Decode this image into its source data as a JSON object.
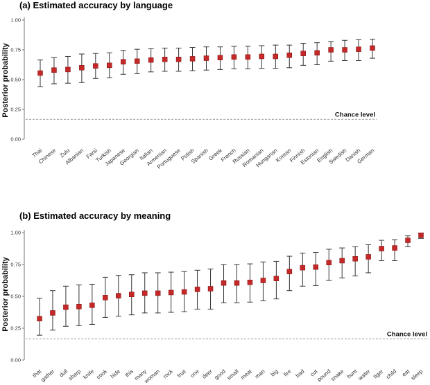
{
  "chart_data": [
    {
      "type": "scatter",
      "title": "(a) Estimated accuracy by language",
      "ylabel": "Posterior probability",
      "xlabel": "",
      "ylim": [
        0,
        1
      ],
      "yticks": [
        "0.00",
        "0.25",
        "0.50",
        "0.75",
        "1.00"
      ],
      "grid": false,
      "reference_line": {
        "label": "Chance level",
        "value": 0.167,
        "style": "dashed"
      },
      "marker_color": "#c62828",
      "categories": [
        "Thai",
        "Chinese",
        "Zulu",
        "Albanian",
        "Farsi",
        "Turkish",
        "Japanese",
        "Georgian",
        "Italian",
        "Armenian",
        "Portuguese",
        "Polish",
        "Spanish",
        "Greek",
        "French",
        "Russian",
        "Romanian",
        "Hungarian",
        "Korean",
        "Finnish",
        "Estonian",
        "English",
        "Swedish",
        "Danish",
        "German"
      ],
      "values": [
        0.555,
        0.58,
        0.585,
        0.6,
        0.615,
        0.62,
        0.65,
        0.655,
        0.665,
        0.67,
        0.67,
        0.675,
        0.68,
        0.685,
        0.69,
        0.69,
        0.695,
        0.695,
        0.705,
        0.72,
        0.725,
        0.75,
        0.75,
        0.755,
        0.765
      ],
      "lower": [
        0.44,
        0.465,
        0.47,
        0.475,
        0.51,
        0.515,
        0.545,
        0.55,
        0.565,
        0.57,
        0.57,
        0.575,
        0.58,
        0.585,
        0.59,
        0.59,
        0.595,
        0.595,
        0.6,
        0.62,
        0.625,
        0.655,
        0.66,
        0.66,
        0.68
      ],
      "upper": [
        0.665,
        0.685,
        0.695,
        0.715,
        0.72,
        0.725,
        0.745,
        0.755,
        0.76,
        0.765,
        0.765,
        0.77,
        0.775,
        0.775,
        0.78,
        0.78,
        0.785,
        0.79,
        0.79,
        0.805,
        0.81,
        0.82,
        0.83,
        0.835,
        0.84
      ]
    },
    {
      "type": "scatter",
      "title": "(b) Estimated accuracy by meaning",
      "ylabel": "Posterior probability",
      "xlabel": "",
      "ylim": [
        0,
        1
      ],
      "yticks": [
        "0.00",
        "0.25",
        "0.50",
        "0.75",
        "1.00"
      ],
      "grid": false,
      "reference_line": {
        "label": "Chance level",
        "value": 0.167,
        "style": "dashed"
      },
      "marker_color": "#c62828",
      "categories": [
        "that",
        "gather",
        "dull",
        "sharp",
        "knife",
        "cook",
        "hide",
        "this",
        "many",
        "woman",
        "rock",
        "fruit",
        "one",
        "deer",
        "good",
        "small",
        "meat",
        "man",
        "big",
        "fire",
        "bad",
        "cut",
        "pound",
        "snake",
        "hunt",
        "water",
        "tiger",
        "child",
        "eat",
        "sleep"
      ],
      "values": [
        0.325,
        0.37,
        0.415,
        0.42,
        0.43,
        0.49,
        0.505,
        0.515,
        0.525,
        0.525,
        0.53,
        0.535,
        0.555,
        0.56,
        0.605,
        0.605,
        0.61,
        0.625,
        0.64,
        0.695,
        0.725,
        0.73,
        0.765,
        0.78,
        0.795,
        0.81,
        0.875,
        0.88,
        0.94,
        0.98
      ],
      "lower": [
        0.195,
        0.235,
        0.265,
        0.27,
        0.28,
        0.335,
        0.345,
        0.355,
        0.37,
        0.37,
        0.375,
        0.38,
        0.4,
        0.4,
        0.45,
        0.45,
        0.455,
        0.465,
        0.48,
        0.545,
        0.58,
        0.585,
        0.625,
        0.645,
        0.66,
        0.685,
        0.78,
        0.78,
        0.89,
        0.955
      ],
      "upper": [
        0.485,
        0.545,
        0.58,
        0.59,
        0.595,
        0.65,
        0.665,
        0.67,
        0.685,
        0.685,
        0.69,
        0.695,
        0.705,
        0.715,
        0.75,
        0.75,
        0.755,
        0.77,
        0.775,
        0.815,
        0.84,
        0.845,
        0.87,
        0.88,
        0.89,
        0.905,
        0.94,
        0.945,
        0.975,
        0.995
      ]
    }
  ]
}
